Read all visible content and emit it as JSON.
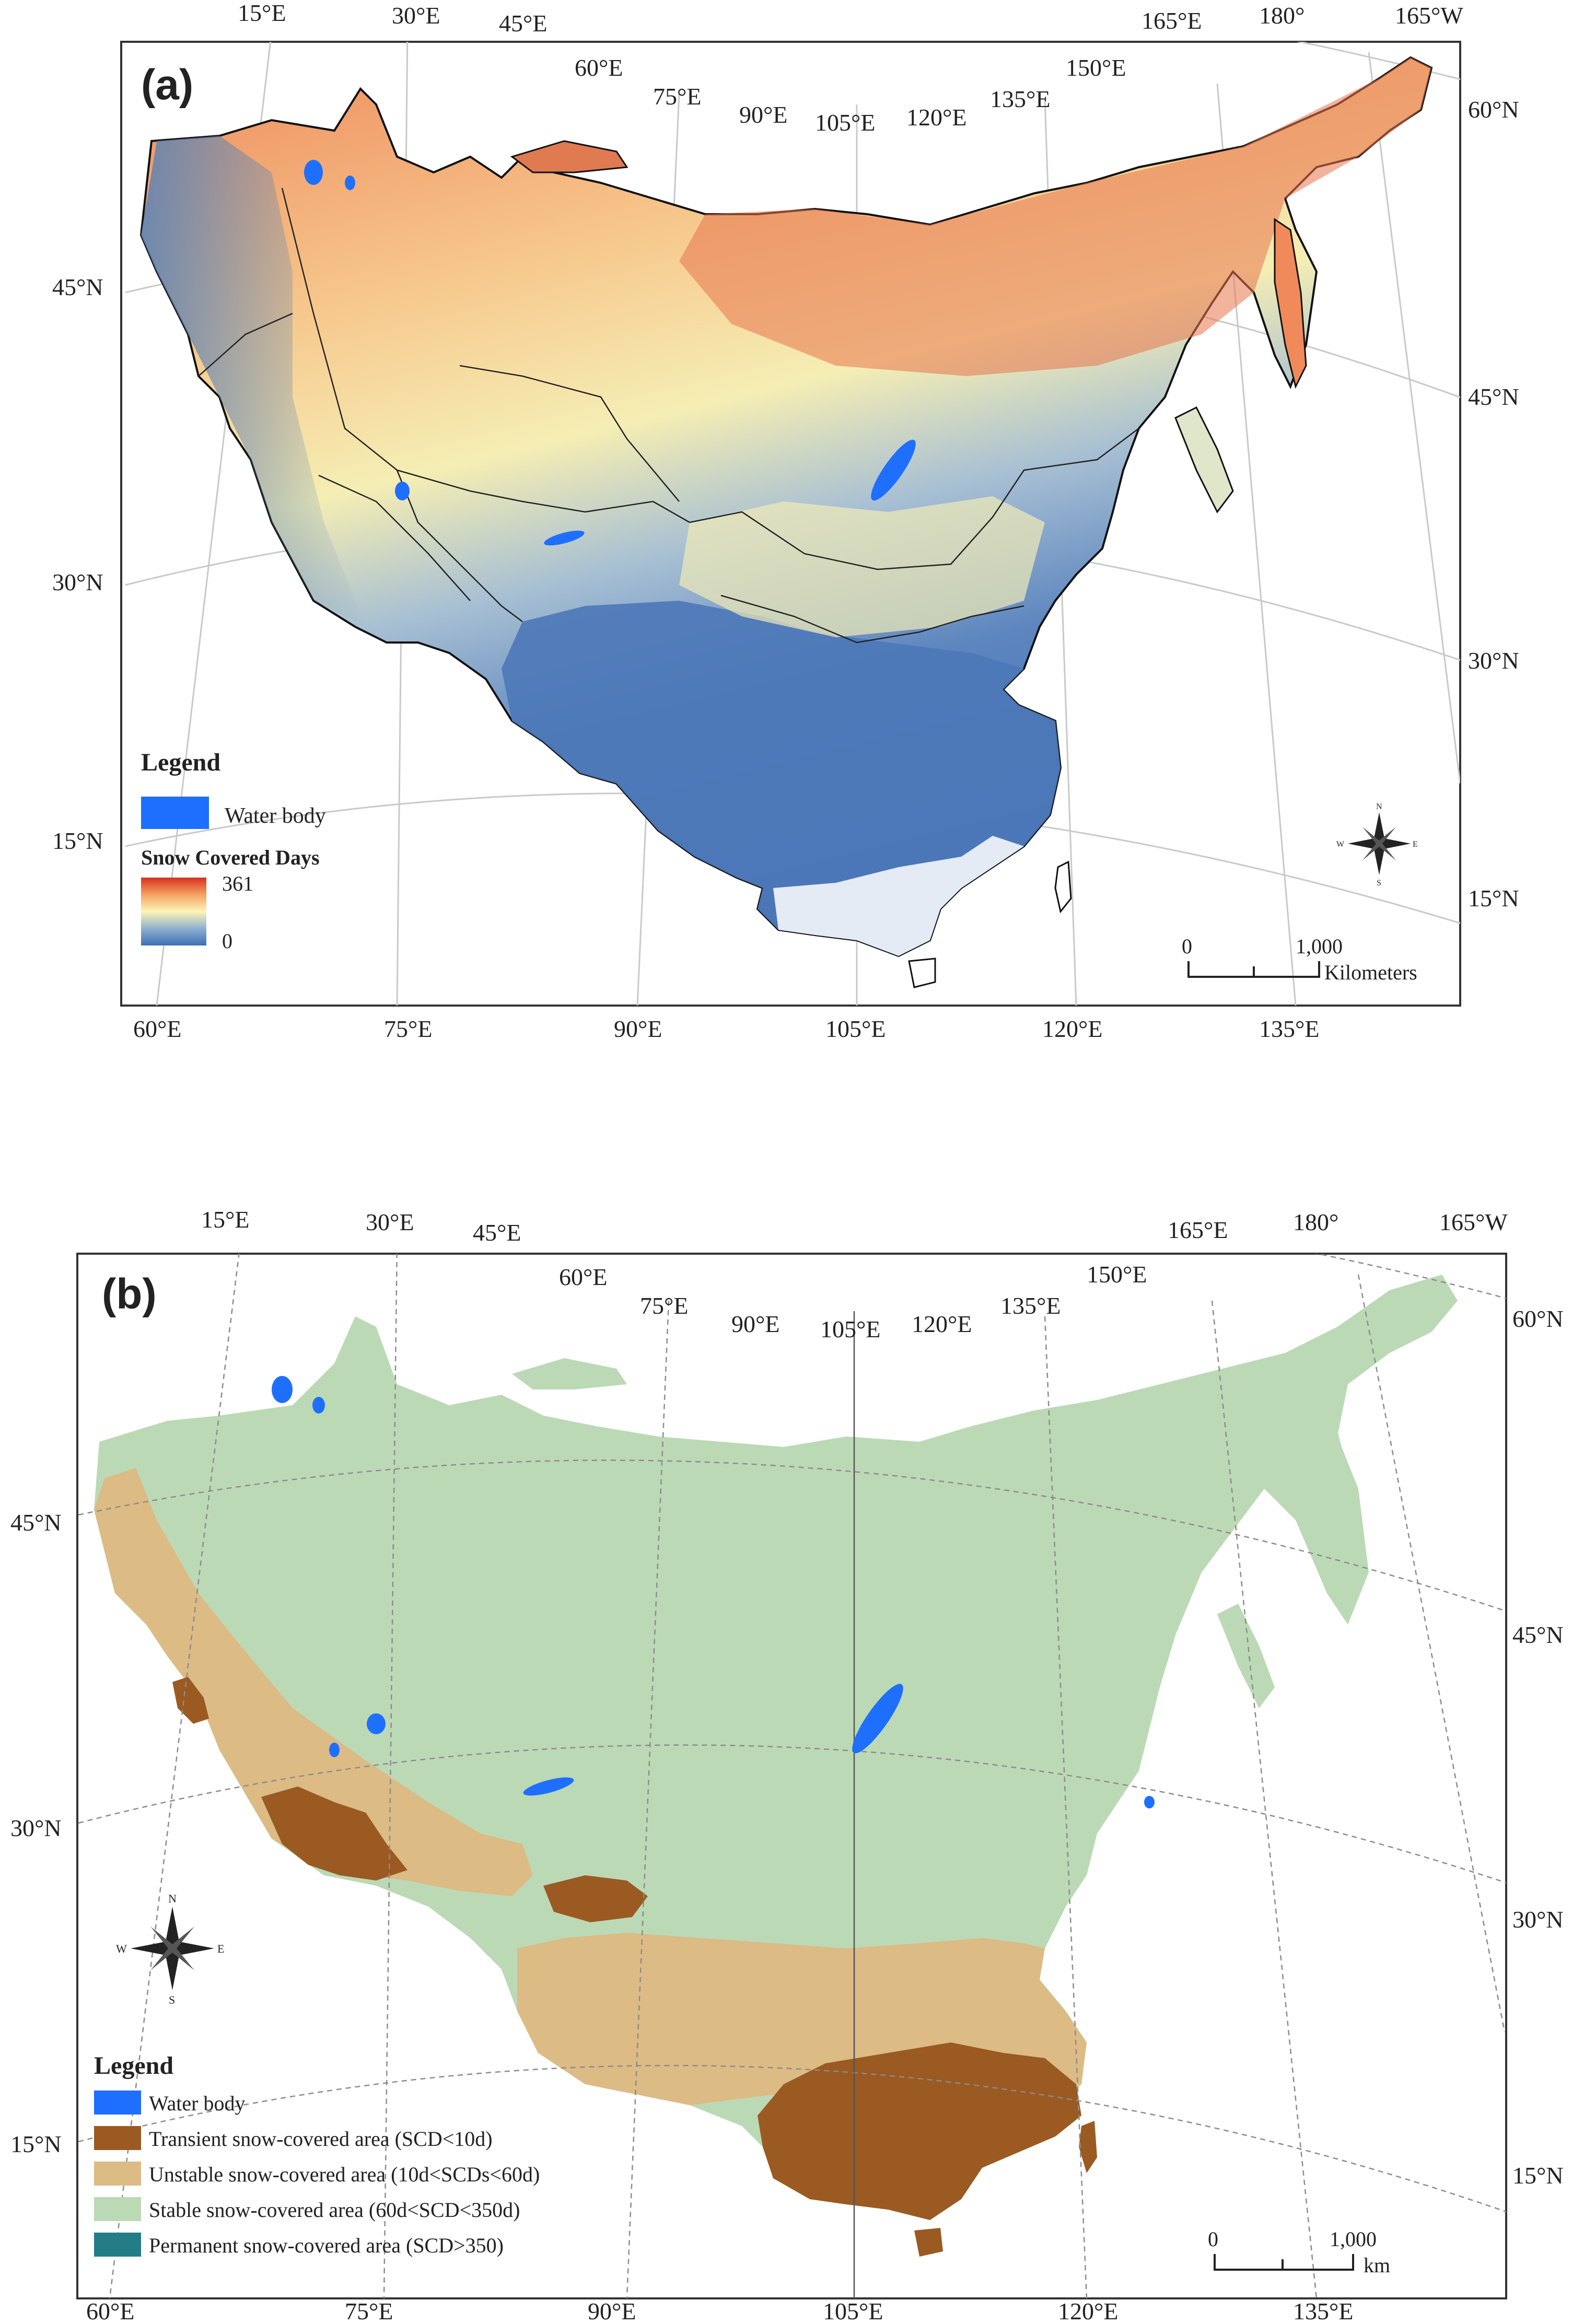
{
  "panel_a": {
    "label": "(a)",
    "top_ticks": [
      "15°E",
      "30°E",
      "45°E",
      "60°E",
      "75°E",
      "90°E",
      "105°E",
      "120°E",
      "135°E",
      "150°E",
      "165°E",
      "180°",
      "165°W"
    ],
    "bottom_ticks": [
      "60°E",
      "75°E",
      "90°E",
      "105°E",
      "120°E",
      "135°E"
    ],
    "left_ticks": [
      "45°N",
      "30°N",
      "15°N"
    ],
    "right_ticks": [
      "60°N",
      "45°N",
      "30°N",
      "15°N"
    ],
    "legend": {
      "title": "Legend",
      "water_label": "Water body",
      "scd_title": "Snow Covered Days",
      "scd_max": "361",
      "scd_min": "0"
    },
    "scale_bar": {
      "zero": "0",
      "dist": "1,000",
      "unit": "Kilometers"
    },
    "colors": {
      "high": "#d7301f",
      "mid": "#fdf5b8",
      "low": "#3f6fb5",
      "water": "#1f6fff"
    }
  },
  "panel_b": {
    "label": "(b)",
    "top_ticks": [
      "15°E",
      "30°E",
      "45°E",
      "60°E",
      "75°E",
      "90°E",
      "105°E",
      "120°E",
      "135°E",
      "150°E",
      "165°E",
      "180°",
      "165°W"
    ],
    "bottom_ticks": [
      "60°E",
      "75°E",
      "90°E",
      "105°E",
      "120°E",
      "135°E"
    ],
    "left_ticks": [
      "45°N",
      "30°N",
      "15°N"
    ],
    "right_ticks": [
      "60°N",
      "45°N",
      "30°N",
      "15°N"
    ],
    "legend": {
      "title": "Legend",
      "items": [
        {
          "label": "Water body",
          "color": "#1f6fff"
        },
        {
          "label": "Transient snow-covered area (SCD<10d)",
          "color": "#9a5a22"
        },
        {
          "label": "Unstable snow-covered area (10d<SCDs<60d)",
          "color": "#dcbb85"
        },
        {
          "label": "Stable snow-covered area (60d<SCD<350d)",
          "color": "#bcd9b6"
        },
        {
          "label": "Permanent snow-covered area (SCD>350)",
          "color": "#247d86"
        }
      ]
    },
    "scale_bar": {
      "zero": "0",
      "dist": "1,000",
      "unit": "km"
    }
  },
  "compass": {
    "n": "N",
    "s": "S",
    "e": "E",
    "w": "W"
  }
}
